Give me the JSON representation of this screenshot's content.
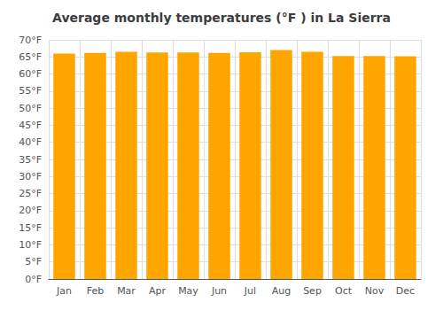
{
  "chart_data": {
    "type": "bar",
    "title": "Average monthly temperatures (°F ) in La Sierra",
    "categories": [
      "Jan",
      "Feb",
      "Mar",
      "Apr",
      "May",
      "Jun",
      "Jul",
      "Aug",
      "Sep",
      "Oct",
      "Nov",
      "Dec"
    ],
    "values": [
      66.0,
      66.2,
      66.5,
      66.3,
      66.3,
      66.2,
      66.4,
      67.0,
      66.5,
      65.3,
      65.3,
      65.2
    ],
    "color": "#FFA500",
    "ylim": [
      0,
      70
    ],
    "yticks": [
      {
        "value": 0,
        "label": "0°F"
      },
      {
        "value": 5,
        "label": "5°F"
      },
      {
        "value": 10,
        "label": "10°F"
      },
      {
        "value": 15,
        "label": "15°F"
      },
      {
        "value": 20,
        "label": "20°F"
      },
      {
        "value": 25,
        "label": "25°F"
      },
      {
        "value": 30,
        "label": "30°F"
      },
      {
        "value": 35,
        "label": "35°F"
      },
      {
        "value": 40,
        "label": "40°F"
      },
      {
        "value": 45,
        "label": "45°F"
      },
      {
        "value": 50,
        "label": "50°F"
      },
      {
        "value": 55,
        "label": "55°F"
      },
      {
        "value": 60,
        "label": "60°F"
      },
      {
        "value": 65,
        "label": "65°F"
      },
      {
        "value": 70,
        "label": "70°F"
      }
    ],
    "grid": true
  }
}
